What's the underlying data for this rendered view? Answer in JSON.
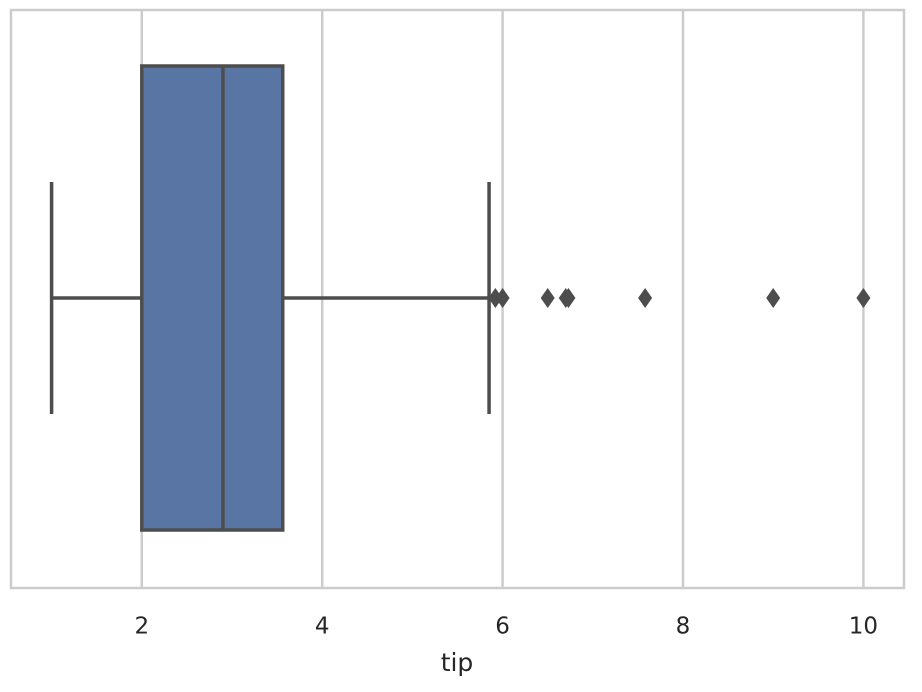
{
  "chart_data": {
    "type": "box",
    "x_label": "tip",
    "xlim": [
      0.55,
      10.45
    ],
    "xticks": [
      2,
      4,
      6,
      8,
      10
    ],
    "grid": true,
    "color": "#5975a4",
    "line_color": "#4d4d4d",
    "box": {
      "whisker_low": 1.0,
      "q1": 2.0,
      "median": 2.9,
      "q3": 3.5625,
      "whisker_high": 5.85,
      "outliers": [
        5.92,
        6.0,
        6.5,
        6.7,
        6.73,
        7.58,
        9.0,
        10.0
      ]
    }
  }
}
